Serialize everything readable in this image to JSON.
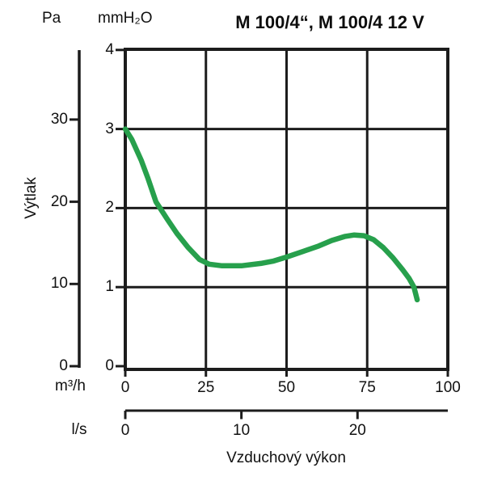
{
  "chart_data": {
    "type": "line",
    "title": "M 100/4“, M 100/4 12 V",
    "x_title": "Vzduchový výkon",
    "y_title": "Výtlak",
    "grid": true,
    "legend": "none",
    "line_color": "#1c1c1c",
    "curve_color": "#27a04c",
    "axes": {
      "y_pa": {
        "label": "Pa",
        "ticks": [
          0,
          10,
          20,
          30
        ],
        "range": [
          0,
          38.5
        ]
      },
      "y_mmh2o": {
        "label": "mmH₂O",
        "ticks": [
          0,
          1,
          2,
          3,
          4
        ],
        "range": [
          0,
          4
        ]
      },
      "x_m3h": {
        "label": "m³/h",
        "ticks": [
          0,
          25,
          50,
          75,
          100
        ],
        "range": [
          0,
          100
        ]
      },
      "x_ls": {
        "label": "l/s",
        "ticks": [
          0,
          10,
          20
        ],
        "m3h_per_ls": 3.6
      }
    },
    "series": [
      {
        "name": "M 100/4“, M 100/4 12 V",
        "x_unit": "m³/h",
        "y_unit": "mmH₂O",
        "points": [
          [
            0,
            3.0
          ],
          [
            2,
            2.87
          ],
          [
            5,
            2.6
          ],
          [
            7,
            2.38
          ],
          [
            9.5,
            2.08
          ],
          [
            13,
            1.86
          ],
          [
            16,
            1.68
          ],
          [
            19.5,
            1.5
          ],
          [
            23,
            1.35
          ],
          [
            26,
            1.29
          ],
          [
            30,
            1.27
          ],
          [
            36,
            1.27
          ],
          [
            42,
            1.3
          ],
          [
            46,
            1.33
          ],
          [
            50,
            1.38
          ],
          [
            55,
            1.45
          ],
          [
            60,
            1.52
          ],
          [
            64,
            1.59
          ],
          [
            68,
            1.64
          ],
          [
            71,
            1.66
          ],
          [
            74,
            1.65
          ],
          [
            77,
            1.6
          ],
          [
            80,
            1.5
          ],
          [
            83,
            1.37
          ],
          [
            86,
            1.22
          ],
          [
            88,
            1.11
          ],
          [
            89.5,
            1.0
          ],
          [
            90.5,
            0.84
          ]
        ]
      }
    ]
  }
}
